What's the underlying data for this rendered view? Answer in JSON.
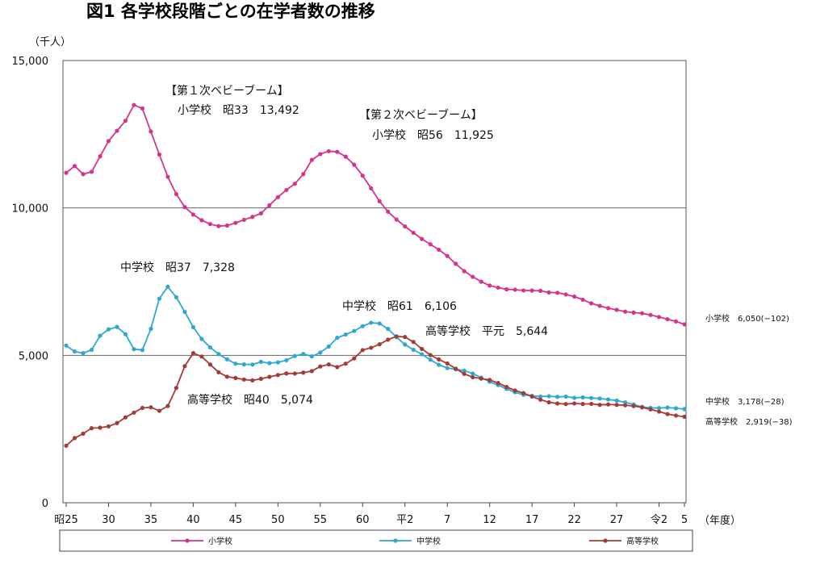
{
  "chart_data": {
    "type": "line",
    "title": "図1 各学校段階ごとの在学者数の推移",
    "ylabel": "（千人）",
    "xlabel": "（年度）",
    "ylim": [
      0,
      15000
    ],
    "y_ticks": [
      "0",
      "5,000",
      "10,000",
      "15,000"
    ],
    "y_tick_values": [
      0,
      5000,
      10000,
      15000
    ],
    "gridlines": [
      5000,
      10000
    ],
    "x_ticks": [
      {
        "label": "昭25",
        "at": "昭和25"
      },
      {
        "label": "30",
        "at": "昭和30"
      },
      {
        "label": "35",
        "at": "昭和35"
      },
      {
        "label": "40",
        "at": "昭和40"
      },
      {
        "label": "45",
        "at": "昭和45"
      },
      {
        "label": "50",
        "at": "昭和50"
      },
      {
        "label": "55",
        "at": "昭和55"
      },
      {
        "label": "60",
        "at": "昭和60"
      },
      {
        "label": "平2",
        "at": "平成2"
      },
      {
        "label": "7",
        "at": "平成7"
      },
      {
        "label": "12",
        "at": "平成12"
      },
      {
        "label": "17",
        "at": "平成17"
      },
      {
        "label": "22",
        "at": "平成22"
      },
      {
        "label": "27",
        "at": "平成27"
      },
      {
        "label": "令2",
        "at": "令和2"
      },
      {
        "label": "5",
        "at": "令和5"
      }
    ],
    "x": [
      "昭和25",
      "昭和26",
      "昭和27",
      "昭和28",
      "昭和29",
      "昭和30",
      "昭和31",
      "昭和32",
      "昭和33",
      "昭和34",
      "昭和35",
      "昭和36",
      "昭和37",
      "昭和38",
      "昭和39",
      "昭和40",
      "昭和41",
      "昭和42",
      "昭和43",
      "昭和44",
      "昭和45",
      "昭和46",
      "昭和47",
      "昭和48",
      "昭和49",
      "昭和50",
      "昭和51",
      "昭和52",
      "昭和53",
      "昭和54",
      "昭和55",
      "昭和56",
      "昭和57",
      "昭和58",
      "昭和59",
      "昭和60",
      "昭和61",
      "昭和62",
      "昭和63",
      "平成元",
      "平成2",
      "平成3",
      "平成4",
      "平成5",
      "平成6",
      "平成7",
      "平成8",
      "平成9",
      "平成10",
      "平成11",
      "平成12",
      "平成13",
      "平成14",
      "平成15",
      "平成16",
      "平成17",
      "平成18",
      "平成19",
      "平成20",
      "平成21",
      "平成22",
      "平成23",
      "平成24",
      "平成25",
      "平成26",
      "平成27",
      "平成28",
      "平成29",
      "平成30",
      "令和元",
      "令和2",
      "令和3",
      "令和4",
      "令和5"
    ],
    "series": [
      {
        "name": "小学校",
        "color": "#d6338c",
        "values": [
          11191,
          11423,
          11148,
          11225,
          11750,
          12267,
          12616,
          12956,
          13492,
          13374,
          12591,
          11811,
          11057,
          10471,
          10031,
          9776,
          9584,
          9452,
          9383,
          9403,
          9493,
          9596,
          9697,
          9816,
          10089,
          10365,
          10609,
          10819,
          11147,
          11629,
          11827,
          11925,
          11902,
          11739,
          11465,
          11095,
          10665,
          10227,
          9872,
          9607,
          9373,
          9158,
          8948,
          8768,
          8583,
          8370,
          8106,
          7855,
          7663,
          7500,
          7366,
          7297,
          7239,
          7227,
          7201,
          7198,
          7188,
          7133,
          7122,
          7064,
          6993,
          6887,
          6765,
          6677,
          6600,
          6543,
          6484,
          6449,
          6428,
          6369,
          6301,
          6224,
          6151,
          6050
        ]
      },
      {
        "name": "中学校",
        "color": "#2fa8cf",
        "values": [
          5333,
          5130,
          5076,
          5187,
          5664,
          5884,
          5963,
          5718,
          5210,
          5181,
          5900,
          6924,
          7328,
          6970,
          6475,
          5957,
          5556,
          5271,
          5043,
          4866,
          4717,
          4694,
          4688,
          4780,
          4735,
          4763,
          4833,
          4977,
          5049,
          4966,
          5094,
          5299,
          5595,
          5706,
          5828,
          5990,
          6106,
          6081,
          5896,
          5619,
          5369,
          5188,
          5037,
          4851,
          4681,
          4570,
          4527,
          4481,
          4381,
          4244,
          4104,
          3992,
          3863,
          3748,
          3663,
          3626,
          3602,
          3615,
          3592,
          3601,
          3558,
          3574,
          3553,
          3536,
          3504,
          3465,
          3406,
          3333,
          3252,
          3218,
          3211,
          3229,
          3205,
          3178
        ]
      },
      {
        "name": "高等学校",
        "color": "#a33c37",
        "values": [
          1935,
          2193,
          2344,
          2528,
          2545,
          2592,
          2702,
          2897,
          3057,
          3216,
          3239,
          3119,
          3282,
          3896,
          4634,
          5074,
          4960,
          4688,
          4426,
          4275,
          4232,
          4179,
          4151,
          4205,
          4271,
          4333,
          4387,
          4381,
          4414,
          4465,
          4622,
          4692,
          4601,
          4716,
          4897,
          5178,
          5257,
          5375,
          5533,
          5644,
          5623,
          5455,
          5218,
          5010,
          4862,
          4725,
          4547,
          4371,
          4258,
          4212,
          4165,
          4062,
          3929,
          3809,
          3719,
          3605,
          3497,
          3407,
          3367,
          3348,
          3369,
          3350,
          3355,
          3320,
          3334,
          3320,
          3309,
          3281,
          3236,
          3169,
          3092,
          3008,
          2957,
          2919
        ]
      }
    ],
    "annotations": [
      {
        "text": "【第１次ベビーブーム】",
        "near": "昭和33"
      },
      {
        "text": "小学校　昭33　13,492",
        "near": "昭和33"
      },
      {
        "text": "【第２次ベビーブーム】",
        "near": "昭和56"
      },
      {
        "text": "小学校　昭56　11,925",
        "near": "昭和56"
      },
      {
        "text": "中学校　昭37　7,328",
        "near": "昭和37"
      },
      {
        "text": "中学校　昭61　6,106",
        "near": "昭和61"
      },
      {
        "text": "高等学校　平元　5,644",
        "near": "平成元"
      },
      {
        "text": "高等学校　昭40　5,074",
        "near": "昭和40"
      }
    ],
    "end_labels": [
      "小学校　6,050(−102)",
      "中学校　3,178(−28)",
      "高等学校　2,919(−38)"
    ],
    "legend": {
      "placement": "bottom",
      "entries": [
        "小学校",
        "中学校",
        "高等学校"
      ]
    },
    "grid": true
  }
}
